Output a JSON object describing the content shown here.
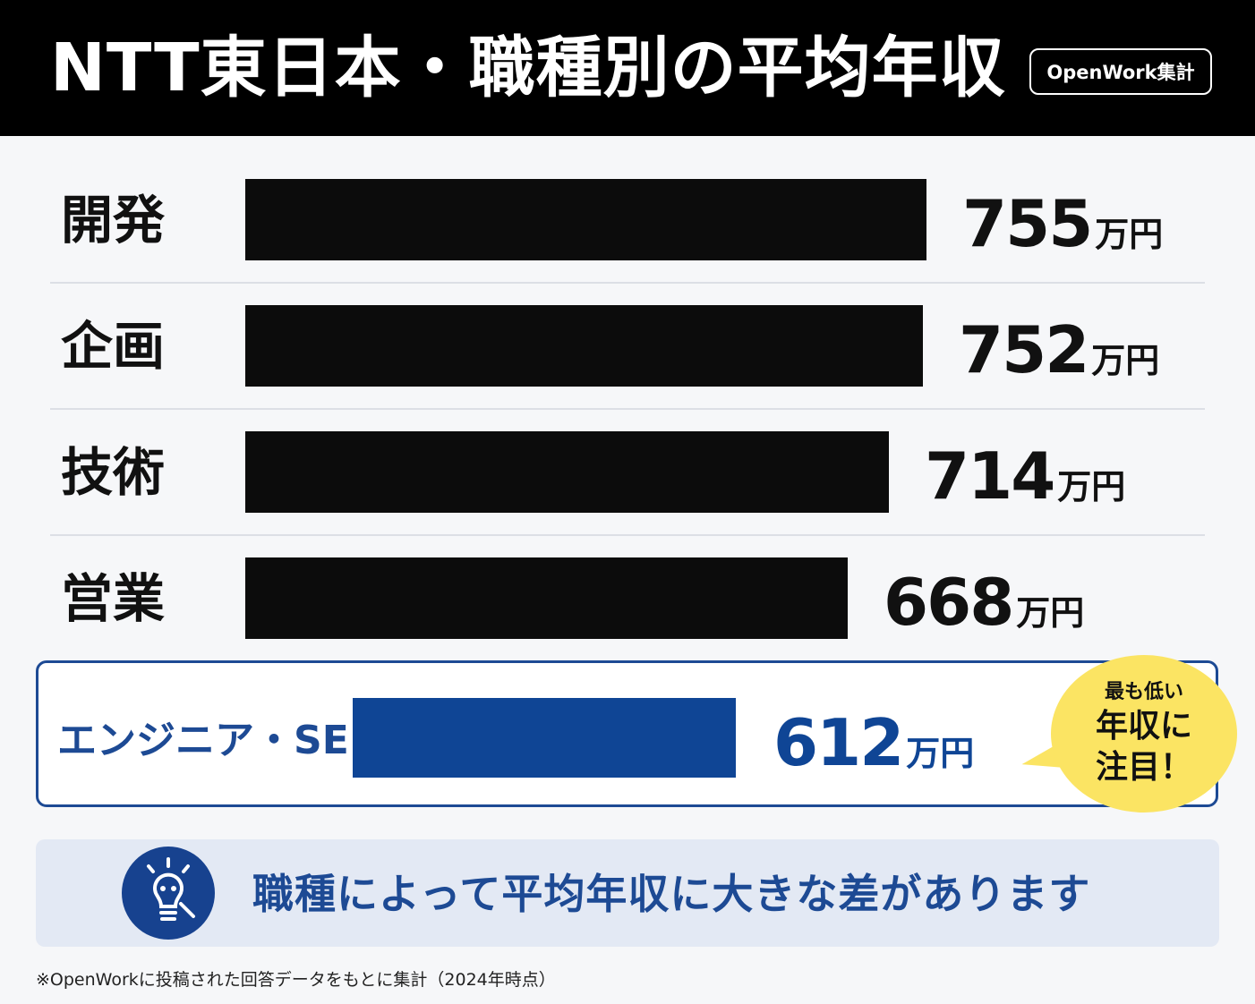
{
  "header": {
    "title": "NTT東日本・職種別の平均年収",
    "source_badge": "OpenWork集計"
  },
  "chart_data": {
    "type": "bar",
    "orientation": "horizontal",
    "categories": [
      "開発",
      "企画",
      "技術",
      "営業",
      "エンジニア・SE"
    ],
    "values": [
      755,
      752,
      714,
      668,
      612
    ],
    "value_labels": [
      "755",
      "752",
      "714",
      "668",
      "612"
    ],
    "unit": "万円",
    "highlighted_category": "エンジニア・SE",
    "colors": {
      "bar": "#0c0c0c",
      "highlight": "#0f4595",
      "highlight_text": "#1d4a94",
      "callout": "#fbe463"
    },
    "grid": false,
    "legend": "none"
  },
  "callout": {
    "line1": "最も低い",
    "line2": "年収に",
    "line3": "注目！"
  },
  "note": {
    "icon": "lightbulb-icon",
    "text": "職種によって平均年収に大きな差があります"
  },
  "footnote": "※OpenWorkに投稿された回答データをもとに集計（2024年時点）"
}
